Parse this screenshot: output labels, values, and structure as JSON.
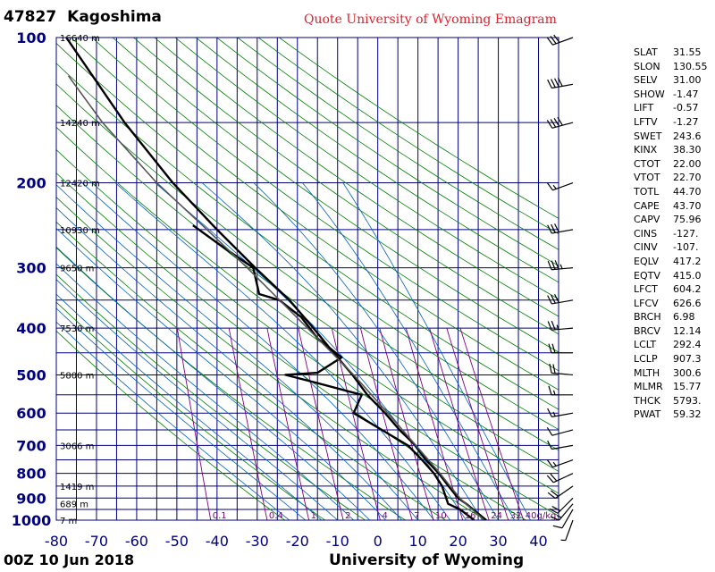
{
  "header": {
    "station_id": "47827",
    "station_name": "Kagoshima",
    "quote": "Quote University of Wyoming Emagram",
    "time": "00Z 10 Jun 2018",
    "footer": "University of Wyoming"
  },
  "indices": [
    {
      "key": "SLAT",
      "value": "31.55"
    },
    {
      "key": "SLON",
      "value": "130.55"
    },
    {
      "key": "SELV",
      "value": "31.00"
    },
    {
      "key": "SHOW",
      "value": "-1.47"
    },
    {
      "key": "LIFT",
      "value": "-0.57"
    },
    {
      "key": "LFTV",
      "value": "-1.27"
    },
    {
      "key": "SWET",
      "value": "243.6"
    },
    {
      "key": "KINX",
      "value": "38.30"
    },
    {
      "key": "CTOT",
      "value": "22.00"
    },
    {
      "key": "VTOT",
      "value": "22.70"
    },
    {
      "key": "TOTL",
      "value": "44.70"
    },
    {
      "key": "CAPE",
      "value": "43.70"
    },
    {
      "key": "CAPV",
      "value": "75.96"
    },
    {
      "key": "CINS",
      "value": "-127."
    },
    {
      "key": "CINV",
      "value": "-107."
    },
    {
      "key": "EQLV",
      "value": "417.2"
    },
    {
      "key": "EQTV",
      "value": "415.0"
    },
    {
      "key": "LFCT",
      "value": "604.2"
    },
    {
      "key": "LFCV",
      "value": "626.6"
    },
    {
      "key": "BRCH",
      "value": "6.98"
    },
    {
      "key": "BRCV",
      "value": "12.14"
    },
    {
      "key": "LCLT",
      "value": "292.4"
    },
    {
      "key": "LCLP",
      "value": "907.3"
    },
    {
      "key": "MLTH",
      "value": "300.6"
    },
    {
      "key": "MLMR",
      "value": "15.77"
    },
    {
      "key": "THCK",
      "value": "5793."
    },
    {
      "key": "PWAT",
      "value": "59.32"
    }
  ],
  "chart_data": {
    "type": "line",
    "title": "47827 Kagoshima",
    "xlabel": "",
    "ylabel": "",
    "xlim": [
      -80,
      45
    ],
    "ylim": [
      1000,
      100
    ],
    "y_scale": "log",
    "x_ticks": [
      -80,
      -70,
      -60,
      -50,
      -40,
      -30,
      -20,
      -10,
      0,
      10,
      20,
      30,
      40
    ],
    "y_ticks": [
      100,
      200,
      300,
      400,
      500,
      600,
      700,
      800,
      900,
      1000
    ],
    "height_labels": [
      {
        "p": 100,
        "label": "16640 m"
      },
      {
        "p": 150,
        "label": "14240 m"
      },
      {
        "p": 200,
        "label": "12420 m"
      },
      {
        "p": 250,
        "label": "10930 m"
      },
      {
        "p": 300,
        "label": "9650 m"
      },
      {
        "p": 400,
        "label": "7530 m"
      },
      {
        "p": 500,
        "label": "5800 m"
      },
      {
        "p": 700,
        "label": "3066 m"
      },
      {
        "p": 850,
        "label": "1419 m"
      },
      {
        "p": 925,
        "label": "689 m"
      },
      {
        "p": 1000,
        "label": "7 m"
      }
    ],
    "mixing_ratio_labels": [
      "0.1",
      "0.4",
      "1",
      "2",
      "4",
      "7",
      "10",
      "16",
      "24",
      "32",
      "40g/kg"
    ],
    "mixing_ratio_values": [
      0.1,
      0.4,
      1,
      2,
      4,
      7,
      10,
      16,
      24,
      32,
      40
    ],
    "series": [
      {
        "points": [
          {
            "p": 1000,
            "t": 27.0
          },
          {
            "p": 925,
            "t": 22.0
          },
          {
            "p": 900,
            "t": 20.0
          },
          {
            "p": 850,
            "t": 17.6
          },
          {
            "p": 800,
            "t": 15.2
          },
          {
            "p": 750,
            "t": 12.0
          },
          {
            "p": 700,
            "t": 9.4
          },
          {
            "p": 650,
            "t": 5.4
          },
          {
            "p": 600,
            "t": 1.8
          },
          {
            "p": 550,
            "t": -2.6
          },
          {
            "p": 500,
            "t": -6.3
          },
          {
            "p": 450,
            "t": -11.0
          },
          {
            "p": 400,
            "t": -16.0
          },
          {
            "p": 350,
            "t": -22.0
          },
          {
            "p": 300,
            "t": -30.5
          },
          {
            "p": 250,
            "t": -40.0
          },
          {
            "p": 200,
            "t": -51.0
          },
          {
            "p": 150,
            "t": -63.0
          },
          {
            "p": 100,
            "t": -77.5
          }
        ]
      },
      {
        "points": [
          {
            "p": 1000,
            "t": 24.0
          },
          {
            "p": 950,
            "t": 20.5
          },
          {
            "p": 925,
            "t": 17.5
          },
          {
            "p": 850,
            "t": 16.0
          },
          {
            "p": 800,
            "t": 14.0
          },
          {
            "p": 750,
            "t": 11.0
          },
          {
            "p": 700,
            "t": 7.5
          },
          {
            "p": 650,
            "t": 1.0
          },
          {
            "p": 600,
            "t": -6.0
          },
          {
            "p": 550,
            "t": -4.0
          },
          {
            "p": 520,
            "t": -15.0
          },
          {
            "p": 500,
            "t": -23.0
          },
          {
            "p": 495,
            "t": -15.0
          },
          {
            "p": 460,
            "t": -9.0
          },
          {
            "p": 420,
            "t": -15.0
          },
          {
            "p": 380,
            "t": -19.0
          },
          {
            "p": 350,
            "t": -24.5
          },
          {
            "p": 340,
            "t": -29.5
          },
          {
            "p": 300,
            "t": -31.0
          },
          {
            "p": 270,
            "t": -39.0
          },
          {
            "p": 245,
            "t": -46.0
          }
        ]
      },
      {
        "points": [
          {
            "p": 1000,
            "t": 26.5
          },
          {
            "p": 950,
            "t": 23.5
          },
          {
            "p": 907,
            "t": 20.8
          },
          {
            "p": 850,
            "t": 18.0
          },
          {
            "p": 800,
            "t": 15.5
          },
          {
            "p": 700,
            "t": 9.5
          },
          {
            "p": 600,
            "t": 2.5
          },
          {
            "p": 500,
            "t": -6.0
          },
          {
            "p": 400,
            "t": -17.5
          },
          {
            "p": 300,
            "t": -32.5
          },
          {
            "p": 250,
            "t": -42.5
          },
          {
            "p": 200,
            "t": -55.0
          },
          {
            "p": 150,
            "t": -68.5
          },
          {
            "p": 120,
            "t": -77.0
          }
        ]
      }
    ],
    "wind_barbs": [
      {
        "p": 1000,
        "dir": 200,
        "kt": 5
      },
      {
        "p": 950,
        "dir": 210,
        "kt": 10
      },
      {
        "p": 925,
        "dir": 220,
        "kt": 15
      },
      {
        "p": 900,
        "dir": 225,
        "kt": 20
      },
      {
        "p": 850,
        "dir": 235,
        "kt": 20
      },
      {
        "p": 800,
        "dir": 245,
        "kt": 20
      },
      {
        "p": 750,
        "dir": 250,
        "kt": 15
      },
      {
        "p": 700,
        "dir": 260,
        "kt": 10
      },
      {
        "p": 650,
        "dir": 255,
        "kt": 10
      },
      {
        "p": 600,
        "dir": 260,
        "kt": 15
      },
      {
        "p": 550,
        "dir": 270,
        "kt": 15
      },
      {
        "p": 500,
        "dir": 275,
        "kt": 20
      },
      {
        "p": 450,
        "dir": 270,
        "kt": 20
      },
      {
        "p": 400,
        "dir": 265,
        "kt": 25
      },
      {
        "p": 350,
        "dir": 260,
        "kt": 30
      },
      {
        "p": 300,
        "dir": 265,
        "kt": 35
      },
      {
        "p": 250,
        "dir": 260,
        "kt": 30
      },
      {
        "p": 200,
        "dir": 250,
        "kt": 15
      },
      {
        "p": 150,
        "dir": 255,
        "kt": 40
      },
      {
        "p": 125,
        "dir": 260,
        "kt": 40
      },
      {
        "p": 100,
        "dir": 250,
        "kt": 30
      }
    ],
    "colors": {
      "grid": "#000080",
      "dry_adiabat": "#008000",
      "moist_adiabat": "#0060c0",
      "mixing_ratio": "#800080",
      "sounding": "#000000",
      "parcel": "#555555",
      "axis_label": "#000080"
    }
  }
}
